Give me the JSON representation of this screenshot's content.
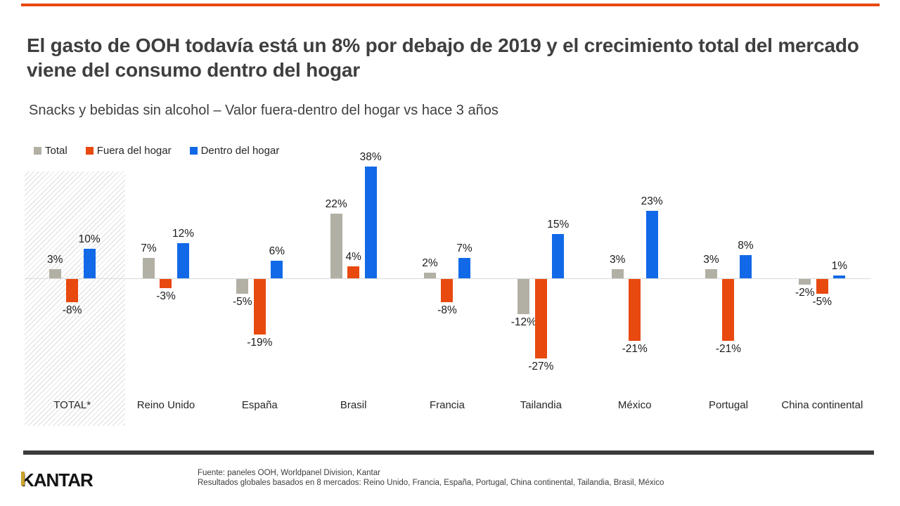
{
  "slide": {
    "title": "El gasto de OOH todavía está un 8% por debajo de 2019 y el crecimiento total del mercado viene del consumo dentro del hogar",
    "subtitle": "Snacks y bebidas sin alcohol – Valor fuera-dentro del hogar vs hace 3 años",
    "accent_color": "#E8490F"
  },
  "legend": {
    "items": [
      {
        "label": "Total",
        "color": "#B2AFA5"
      },
      {
        "label": "Fuera del hogar",
        "color": "#E8490F"
      },
      {
        "label": "Dentro del hogar",
        "color": "#1269E8"
      }
    ]
  },
  "chart_data": {
    "type": "bar",
    "title": "Snacks y bebidas sin alcohol – Valor fuera-dentro del hogar vs hace 3 años",
    "categories": [
      "TOTAL*",
      "Reino Unido",
      "España",
      "Brasil",
      "Francia",
      "Tailandia",
      "México",
      "Portugal",
      "China continental"
    ],
    "series": [
      {
        "name": "Total",
        "color": "#B2AFA5",
        "values": [
          3,
          7,
          -5,
          22,
          2,
          -12,
          3,
          3,
          -2
        ]
      },
      {
        "name": "Fuera del hogar",
        "color": "#E8490F",
        "values": [
          -8,
          -3,
          -19,
          4,
          -8,
          -27,
          -21,
          -21,
          -5
        ]
      },
      {
        "name": "Dentro del hogar",
        "color": "#1269E8",
        "values": [
          10,
          12,
          6,
          38,
          7,
          15,
          23,
          8,
          1
        ]
      }
    ],
    "value_suffix": "%",
    "highlight_category": "TOTAL*",
    "xlabel": "",
    "ylabel": "",
    "ylim": [
      -30,
      40
    ],
    "grid": false,
    "zero_line": true,
    "legend_position": "top-left",
    "data_labels": true
  },
  "footer": {
    "logo_text": "KANTAR",
    "source_line1": "Fuente: paneles OOH, Worldpanel Division, Kantar",
    "source_line2": "Resultados globales basados en 8 mercados: Reino Unido, Francia, España, Portugal, China continental, Tailandia,  Brasil, México"
  }
}
